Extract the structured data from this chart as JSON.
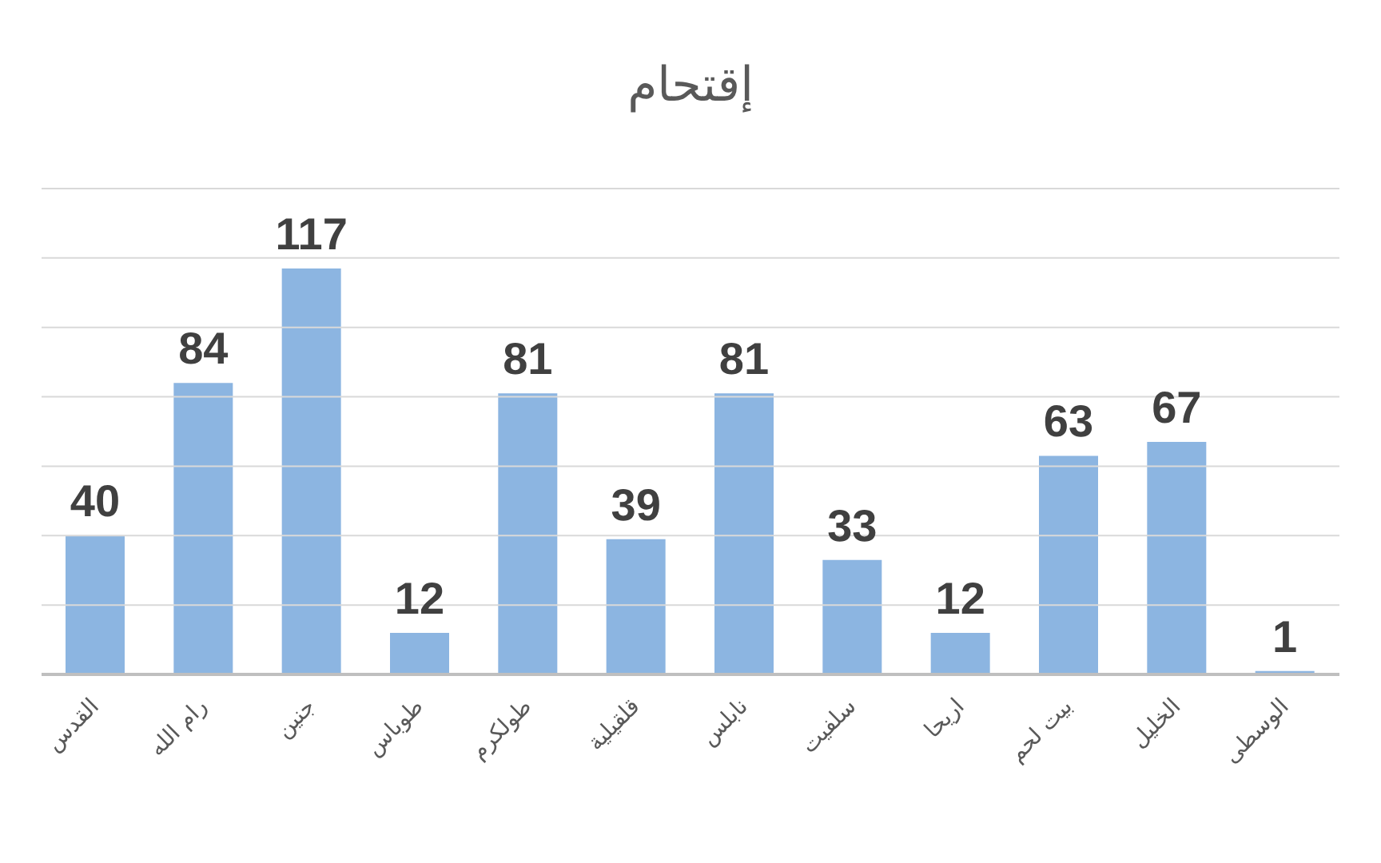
{
  "chart_data": {
    "type": "bar",
    "title": "إقتحام",
    "categories": [
      "القدس",
      "رام الله",
      "جنين",
      "طوباس",
      "طولكرم",
      "قلقيلية",
      "نابلس",
      "سلفيت",
      "اريحا",
      "بيت لحم",
      "الخليل",
      "الوسطى"
    ],
    "values": [
      40,
      84,
      117,
      12,
      81,
      39,
      81,
      33,
      12,
      63,
      67,
      1
    ],
    "color": "#8cb5e1",
    "ylim": [
      0,
      140
    ],
    "yticks": [
      {
        "value": 0,
        "label": null
      },
      {
        "value": 20,
        "label": null
      },
      {
        "value": 40,
        "label": null
      },
      {
        "value": 60,
        "label": null
      },
      {
        "value": 80,
        "label": null
      },
      {
        "value": 100,
        "label": null
      },
      {
        "value": 120,
        "label": null
      },
      {
        "value": 140,
        "label": null
      }
    ],
    "tick_labels": "x",
    "grid": "y",
    "data_labels": true,
    "legend": false
  }
}
